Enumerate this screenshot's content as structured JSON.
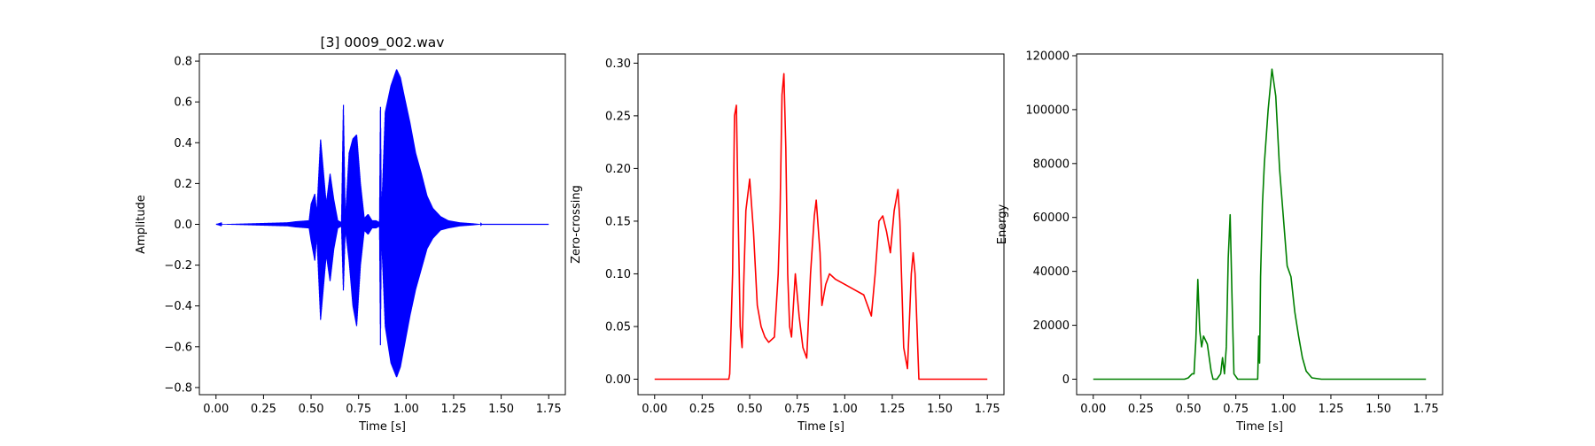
{
  "chart_data": [
    {
      "type": "line",
      "title": "[3] 0009_002.wav",
      "xlabel": "Time [s]",
      "ylabel": "Amplitude",
      "xlim": [
        -0.0875,
        1.8375
      ],
      "ylim": [
        -0.835,
        0.835
      ],
      "xticks": [
        0.0,
        0.25,
        0.5,
        0.75,
        1.0,
        1.25,
        1.5,
        1.75
      ],
      "xtick_labels": [
        "0.00",
        "0.25",
        "0.50",
        "0.75",
        "1.00",
        "1.25",
        "1.50",
        "1.75"
      ],
      "yticks": [
        -0.8,
        -0.6,
        -0.4,
        -0.2,
        0.0,
        0.2,
        0.4,
        0.6,
        0.8
      ],
      "ytick_labels": [
        "−0.8",
        "−0.6",
        "−0.4",
        "−0.2",
        "0.0",
        "0.2",
        "0.4",
        "0.6",
        "0.8"
      ],
      "color": "#0000ff",
      "envelope": {
        "x": [
          0.0,
          0.38,
          0.42,
          0.49,
          0.5,
          0.52,
          0.53,
          0.55,
          0.58,
          0.6,
          0.62,
          0.64,
          0.66,
          0.67,
          0.68,
          0.7,
          0.72,
          0.74,
          0.76,
          0.78,
          0.8,
          0.82,
          0.84,
          0.86,
          0.865,
          0.87,
          0.89,
          0.92,
          0.95,
          0.97,
          0.99,
          1.02,
          1.05,
          1.08,
          1.11,
          1.14,
          1.18,
          1.22,
          1.28,
          1.35,
          1.4,
          1.75
        ],
        "upper": [
          0.0,
          0.01,
          0.015,
          0.02,
          0.1,
          0.15,
          0.05,
          0.42,
          0.1,
          0.25,
          0.12,
          0.02,
          0.01,
          0.6,
          0.02,
          0.35,
          0.42,
          0.44,
          0.2,
          0.03,
          0.05,
          0.02,
          0.02,
          0.01,
          0.62,
          0.03,
          0.55,
          0.68,
          0.76,
          0.72,
          0.63,
          0.5,
          0.35,
          0.25,
          0.14,
          0.08,
          0.04,
          0.02,
          0.01,
          0.005,
          0.0,
          0.0
        ],
        "lower": [
          0.0,
          -0.01,
          -0.015,
          -0.02,
          -0.08,
          -0.18,
          -0.05,
          -0.47,
          -0.15,
          -0.28,
          -0.12,
          -0.02,
          -0.01,
          -0.33,
          -0.02,
          -0.18,
          -0.4,
          -0.5,
          -0.2,
          -0.03,
          -0.05,
          -0.02,
          -0.02,
          -0.01,
          -0.6,
          -0.05,
          -0.5,
          -0.68,
          -0.75,
          -0.7,
          -0.6,
          -0.45,
          -0.32,
          -0.22,
          -0.12,
          -0.07,
          -0.03,
          -0.02,
          -0.01,
          -0.005,
          0.0,
          0.0
        ]
      }
    },
    {
      "type": "line",
      "title": "",
      "xlabel": "Time [s]",
      "ylabel": "Zero-crossing",
      "xlim": [
        -0.0875,
        1.8375
      ],
      "ylim": [
        -0.0147,
        0.3087
      ],
      "xticks": [
        0.0,
        0.25,
        0.5,
        0.75,
        1.0,
        1.25,
        1.5,
        1.75
      ],
      "xtick_labels": [
        "0.00",
        "0.25",
        "0.50",
        "0.75",
        "1.00",
        "1.25",
        "1.50",
        "1.75"
      ],
      "yticks": [
        0.0,
        0.05,
        0.1,
        0.15,
        0.2,
        0.25,
        0.3
      ],
      "ytick_labels": [
        "0.00",
        "0.05",
        "0.10",
        "0.15",
        "0.20",
        "0.25",
        "0.30"
      ],
      "color": "#ff0000",
      "x": [
        0.0,
        0.39,
        0.395,
        0.41,
        0.42,
        0.43,
        0.44,
        0.45,
        0.46,
        0.47,
        0.48,
        0.5,
        0.52,
        0.54,
        0.56,
        0.58,
        0.6,
        0.63,
        0.65,
        0.66,
        0.67,
        0.68,
        0.69,
        0.7,
        0.71,
        0.72,
        0.74,
        0.76,
        0.78,
        0.8,
        0.82,
        0.84,
        0.85,
        0.87,
        0.88,
        0.9,
        0.92,
        0.95,
        1.0,
        1.05,
        1.1,
        1.14,
        1.16,
        1.18,
        1.2,
        1.22,
        1.24,
        1.26,
        1.28,
        1.29,
        1.3,
        1.31,
        1.33,
        1.35,
        1.36,
        1.37,
        1.38,
        1.39,
        1.4,
        1.75
      ],
      "y": [
        0.0,
        0.0,
        0.005,
        0.1,
        0.25,
        0.26,
        0.15,
        0.05,
        0.03,
        0.1,
        0.16,
        0.19,
        0.14,
        0.07,
        0.05,
        0.04,
        0.035,
        0.04,
        0.1,
        0.16,
        0.27,
        0.29,
        0.22,
        0.1,
        0.05,
        0.04,
        0.1,
        0.06,
        0.03,
        0.02,
        0.1,
        0.155,
        0.17,
        0.12,
        0.07,
        0.09,
        0.1,
        0.095,
        0.09,
        0.085,
        0.08,
        0.06,
        0.1,
        0.15,
        0.155,
        0.14,
        0.12,
        0.16,
        0.18,
        0.15,
        0.09,
        0.03,
        0.01,
        0.1,
        0.12,
        0.1,
        0.05,
        0.0,
        0.0,
        0.0
      ]
    },
    {
      "type": "line",
      "title": "",
      "xlabel": "Time [s]",
      "ylabel": "Energy",
      "xlim": [
        -0.0875,
        1.8375
      ],
      "ylim": [
        -5745,
        120645
      ],
      "xticks": [
        0.0,
        0.25,
        0.5,
        0.75,
        1.0,
        1.25,
        1.5,
        1.75
      ],
      "xtick_labels": [
        "0.00",
        "0.25",
        "0.50",
        "0.75",
        "1.00",
        "1.25",
        "1.50",
        "1.75"
      ],
      "yticks": [
        0,
        20000,
        40000,
        60000,
        80000,
        100000,
        120000
      ],
      "ytick_labels": [
        "0",
        "20000",
        "40000",
        "60000",
        "80000",
        "100000",
        "120000"
      ],
      "color": "#008000",
      "x": [
        0.0,
        0.48,
        0.5,
        0.52,
        0.53,
        0.54,
        0.55,
        0.56,
        0.57,
        0.58,
        0.6,
        0.62,
        0.63,
        0.65,
        0.67,
        0.68,
        0.69,
        0.7,
        0.71,
        0.72,
        0.73,
        0.74,
        0.76,
        0.8,
        0.85,
        0.865,
        0.87,
        0.875,
        0.88,
        0.89,
        0.9,
        0.92,
        0.94,
        0.96,
        0.98,
        1.0,
        1.02,
        1.04,
        1.06,
        1.08,
        1.1,
        1.12,
        1.15,
        1.2,
        1.75
      ],
      "y": [
        0,
        0,
        500,
        2000,
        2000,
        15000,
        37000,
        18000,
        12000,
        16000,
        13000,
        3000,
        0,
        0,
        2000,
        8000,
        2000,
        12000,
        45000,
        61000,
        30000,
        2000,
        0,
        0,
        0,
        0,
        16000,
        6000,
        38000,
        65000,
        80000,
        100000,
        115000,
        105000,
        78000,
        60000,
        42000,
        38000,
        25000,
        16000,
        8000,
        3000,
        500,
        0,
        0
      ]
    }
  ]
}
